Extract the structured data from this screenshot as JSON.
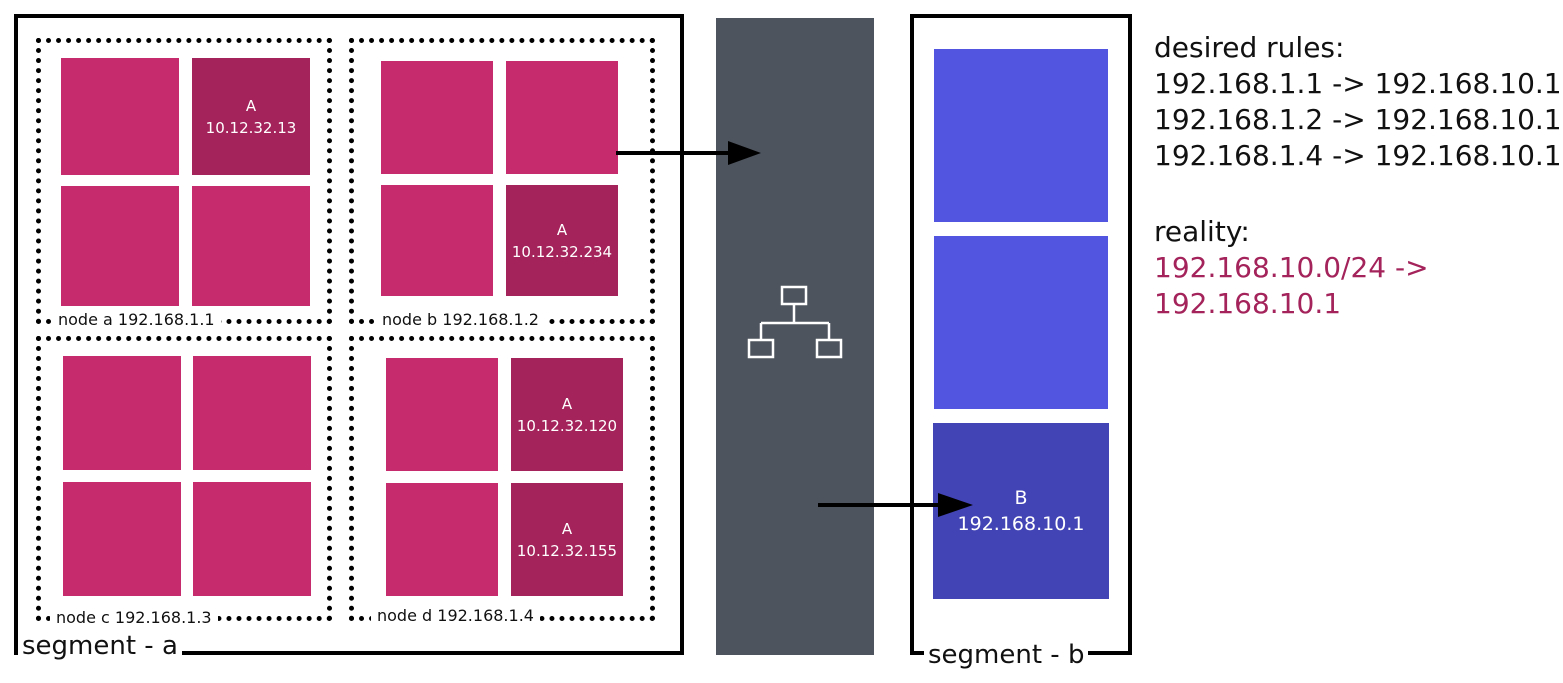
{
  "segment_a": {
    "label": "segment - a",
    "nodes": [
      {
        "label": "node a 192.168.1.1",
        "app_pods": [
          {
            "name": "A",
            "ip": "10.12.32.13"
          }
        ]
      },
      {
        "label": "node b 192.168.1.2",
        "app_pods": [
          {
            "name": "A",
            "ip": "10.12.32.234"
          }
        ]
      },
      {
        "label": "node c 192.168.1.3",
        "app_pods": []
      },
      {
        "label": "node d 192.168.1.4",
        "app_pods": [
          {
            "name": "A",
            "ip": "10.12.32.120"
          },
          {
            "name": "A",
            "ip": "10.12.32.155"
          }
        ]
      }
    ]
  },
  "router": {
    "icon": "network-icon"
  },
  "segment_b": {
    "label": "segment - b",
    "service": {
      "name": "B",
      "ip": "192.168.10.1"
    }
  },
  "desired_rules": {
    "heading": "desired rules:",
    "rules": [
      "192.168.1.1 -> 192.168.10.1",
      "192.168.1.2 -> 192.168.10.1",
      "192.168.1.4 -> 192.168.10.1"
    ]
  },
  "reality": {
    "heading": "reality:",
    "lines": [
      "192.168.10.0/24 ->",
      "192.168.10.1"
    ]
  },
  "colors": {
    "pod": "#c62b6e",
    "app_pod": "#a3235a",
    "router": "#4e545e",
    "segment_b_box": "#5155df",
    "service_box": "#4244b5",
    "reality_text": "#a3235a"
  }
}
